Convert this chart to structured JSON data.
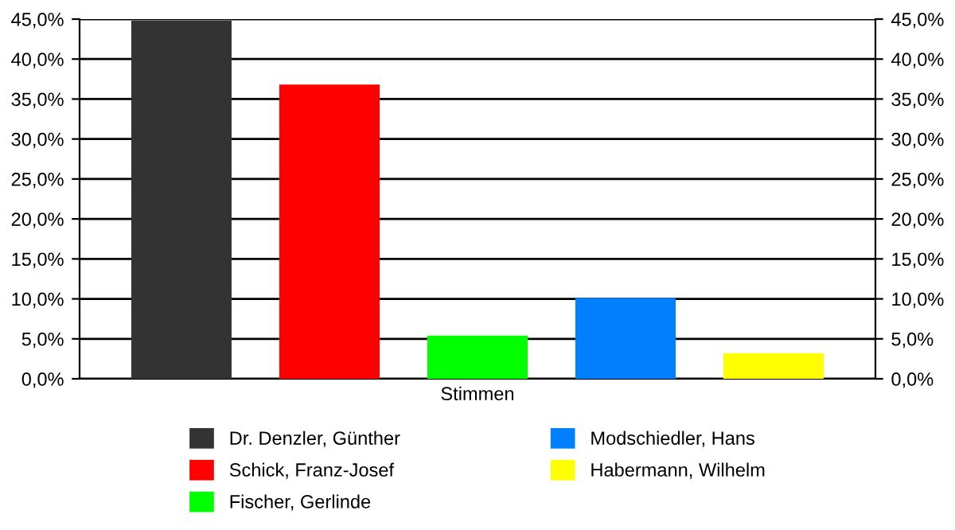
{
  "chart_data": {
    "type": "bar",
    "categories": [
      "Stimmen"
    ],
    "series": [
      {
        "name": "Dr. Denzler, Günther",
        "color": "#333333",
        "values": [
          44.8
        ]
      },
      {
        "name": "Schick, Franz-Josef",
        "color": "#ff0000",
        "values": [
          36.8
        ]
      },
      {
        "name": "Fischer, Gerlinde",
        "color": "#00ff00",
        "values": [
          5.4
        ]
      },
      {
        "name": "Modschiedler, Hans",
        "color": "#0080ff",
        "values": [
          10.1
        ]
      },
      {
        "name": "Habermann, Wilhelm",
        "color": "#ffff00",
        "values": [
          3.2
        ]
      }
    ],
    "ylim": [
      0,
      45
    ],
    "yticks": [
      {
        "value": 0,
        "label": "0,0%"
      },
      {
        "value": 5,
        "label": "5,0%"
      },
      {
        "value": 10,
        "label": "10,0%"
      },
      {
        "value": 15,
        "label": "15,0%"
      },
      {
        "value": 20,
        "label": "20,0%"
      },
      {
        "value": 25,
        "label": "25,0%"
      },
      {
        "value": 30,
        "label": "30,0%"
      },
      {
        "value": 35,
        "label": "35,0%"
      },
      {
        "value": 40,
        "label": "40,0%"
      },
      {
        "value": 45,
        "label": "45,0%"
      }
    ],
    "grid": "y",
    "legend": "bottom"
  }
}
